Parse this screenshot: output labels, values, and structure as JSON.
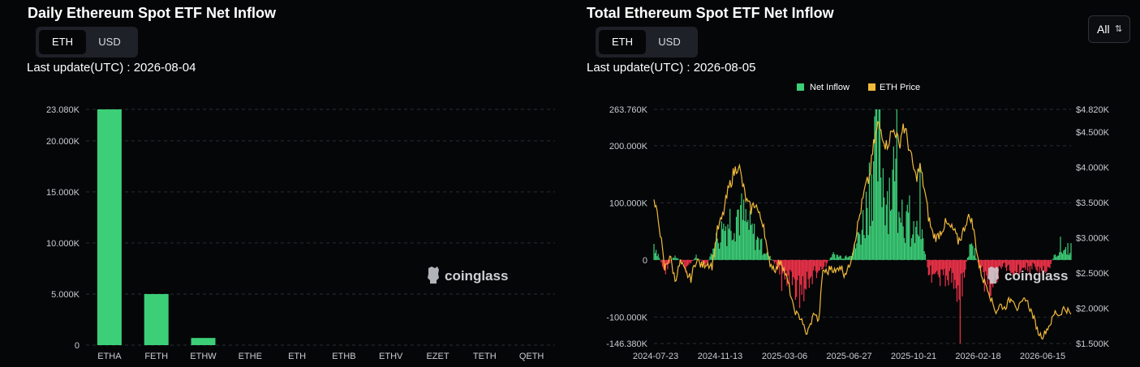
{
  "left": {
    "title": "Daily Ethereum Spot ETF Net Inflow",
    "toggle": [
      "ETH",
      "USD"
    ],
    "active": "ETH",
    "last_update": "Last update(UTC) : 2026-08-04",
    "watermark": "coinglass"
  },
  "right": {
    "title": "Total Ethereum Spot ETF Net Inflow",
    "toggle": [
      "ETH",
      "USD"
    ],
    "active": "ETH",
    "last_update": "Last update(UTC) : 2026-08-05",
    "range_select": "All",
    "watermark": "coinglass"
  },
  "colors": {
    "green": "#3ccf78",
    "red": "#f0334a",
    "gold": "#f0b93a",
    "grid": "#2a2d33",
    "axis_text": "#c9ccd1"
  },
  "chart_data": [
    {
      "type": "bar",
      "title": "Daily Ethereum Spot ETF Net Inflow",
      "categories": [
        "ETHA",
        "FETH",
        "ETHW",
        "ETHE",
        "ETH",
        "ETHB",
        "ETHV",
        "EZET",
        "TETH",
        "QETH"
      ],
      "values": [
        23080,
        5000,
        700,
        0,
        0,
        0,
        0,
        0,
        0,
        0
      ],
      "ylim": [
        0,
        23080
      ],
      "yticks": [
        0,
        5000,
        10000,
        15000,
        20000,
        23080
      ],
      "ytick_labels": [
        "0",
        "5.000K",
        "10.000K",
        "15.000K",
        "20.000K",
        "23.080K"
      ],
      "grid": true
    },
    {
      "type": "bar+line",
      "title": "Total Ethereum Spot ETF Net Inflow",
      "legend": [
        "Net Inflow",
        "ETH Price"
      ],
      "legend_position": "top-center",
      "x_tick_labels": [
        "2024-07-23",
        "2024-11-13",
        "2025-03-06",
        "2025-06-27",
        "2025-10-21",
        "2026-02-18",
        "2026-06-15"
      ],
      "y_left": {
        "ylim": [
          -146380,
          263760
        ],
        "ticks": [
          -146380,
          -100000,
          0,
          100000,
          200000,
          263760
        ],
        "labels": [
          "-146.380K",
          "-100.000K",
          "0",
          "100.000K",
          "200.000K",
          "263.760K"
        ]
      },
      "y_right": {
        "ylim": [
          1500,
          4820
        ],
        "ticks": [
          1500,
          2000,
          2500,
          3000,
          3500,
          4000,
          4500,
          4820
        ],
        "labels": [
          "$1.500K",
          "$2.000K",
          "$2.500K",
          "$3.000K",
          "$3.500K",
          "$4.000K",
          "$4.500K",
          "$4.820K"
        ]
      },
      "price_keypoints": [
        [
          0,
          3500
        ],
        [
          5,
          3200
        ],
        [
          10,
          2550
        ],
        [
          15,
          2750
        ],
        [
          20,
          2400
        ],
        [
          25,
          2650
        ],
        [
          30,
          2500
        ],
        [
          35,
          2420
        ],
        [
          40,
          2700
        ],
        [
          45,
          2600
        ],
        [
          50,
          2650
        ],
        [
          55,
          2600
        ],
        [
          60,
          3100
        ],
        [
          65,
          3300
        ],
        [
          70,
          3650
        ],
        [
          75,
          3900
        ],
        [
          80,
          4050
        ],
        [
          84,
          3750
        ],
        [
          88,
          3500
        ],
        [
          92,
          3400
        ],
        [
          96,
          3500
        ],
        [
          100,
          3300
        ],
        [
          104,
          3200
        ],
        [
          108,
          2700
        ],
        [
          112,
          2600
        ],
        [
          116,
          2550
        ],
        [
          120,
          2700
        ],
        [
          124,
          2500
        ],
        [
          128,
          2300
        ],
        [
          132,
          2000
        ],
        [
          136,
          1900
        ],
        [
          140,
          1850
        ],
        [
          144,
          1620
        ],
        [
          148,
          1760
        ],
        [
          152,
          1950
        ],
        [
          156,
          1800
        ],
        [
          160,
          2550
        ],
        [
          164,
          2500
        ],
        [
          168,
          2600
        ],
        [
          172,
          2500
        ],
        [
          176,
          2620
        ],
        [
          180,
          2500
        ],
        [
          184,
          2550
        ],
        [
          188,
          2800
        ],
        [
          192,
          3100
        ],
        [
          196,
          3400
        ],
        [
          200,
          3700
        ],
        [
          204,
          3850
        ],
        [
          208,
          4300
        ],
        [
          212,
          4600
        ],
        [
          216,
          4500
        ],
        [
          220,
          4300
        ],
        [
          224,
          4450
        ],
        [
          228,
          4550
        ],
        [
          232,
          4300
        ],
        [
          236,
          4600
        ],
        [
          240,
          4400
        ],
        [
          244,
          4100
        ],
        [
          248,
          3850
        ],
        [
          252,
          4000
        ],
        [
          256,
          3700
        ],
        [
          260,
          3300
        ],
        [
          264,
          3050
        ],
        [
          268,
          3000
        ],
        [
          272,
          3100
        ],
        [
          276,
          3200
        ],
        [
          280,
          3150
        ],
        [
          284,
          3100
        ],
        [
          288,
          2950
        ],
        [
          292,
          3050
        ],
        [
          296,
          3250
        ],
        [
          300,
          3300
        ],
        [
          304,
          3000
        ],
        [
          308,
          2600
        ],
        [
          312,
          2400
        ],
        [
          316,
          2300
        ],
        [
          320,
          2100
        ],
        [
          324,
          1950
        ],
        [
          328,
          2050
        ],
        [
          332,
          2000
        ],
        [
          336,
          2100
        ],
        [
          340,
          2150
        ],
        [
          344,
          2000
        ],
        [
          348,
          2050
        ],
        [
          352,
          2150
        ],
        [
          356,
          2000
        ],
        [
          360,
          1850
        ],
        [
          364,
          1650
        ],
        [
          368,
          1600
        ],
        [
          372,
          1700
        ],
        [
          376,
          1800
        ],
        [
          380,
          1950
        ],
        [
          384,
          1900
        ],
        [
          388,
          2000
        ],
        [
          392,
          1970
        ],
        [
          395,
          1900
        ]
      ],
      "inflow_keypoints": [
        [
          0,
          30000
        ],
        [
          10,
          -20000
        ],
        [
          20,
          10000
        ],
        [
          30,
          -15000
        ],
        [
          40,
          5000
        ],
        [
          50,
          -10000
        ],
        [
          60,
          40000
        ],
        [
          70,
          70000
        ],
        [
          80,
          90000
        ],
        [
          90,
          60000
        ],
        [
          100,
          30000
        ],
        [
          110,
          5000
        ],
        [
          120,
          -20000
        ],
        [
          130,
          -40000
        ],
        [
          140,
          -60000
        ],
        [
          150,
          -30000
        ],
        [
          160,
          -15000
        ],
        [
          170,
          10000
        ],
        [
          180,
          5000
        ],
        [
          190,
          20000
        ],
        [
          200,
          80000
        ],
        [
          208,
          200000
        ],
        [
          214,
          190000
        ],
        [
          220,
          120000
        ],
        [
          228,
          150000
        ],
        [
          236,
          90000
        ],
        [
          244,
          40000
        ],
        [
          252,
          60000
        ],
        [
          260,
          -20000
        ],
        [
          270,
          -40000
        ],
        [
          280,
          -30000
        ],
        [
          290,
          -60000
        ],
        [
          300,
          30000
        ],
        [
          310,
          -20000
        ],
        [
          320,
          -50000
        ],
        [
          330,
          -10000
        ],
        [
          340,
          -20000
        ],
        [
          350,
          -15000
        ],
        [
          360,
          -10000
        ],
        [
          370,
          -30000
        ],
        [
          380,
          10000
        ],
        [
          390,
          20000
        ],
        [
          395,
          25000
        ]
      ]
    }
  ]
}
